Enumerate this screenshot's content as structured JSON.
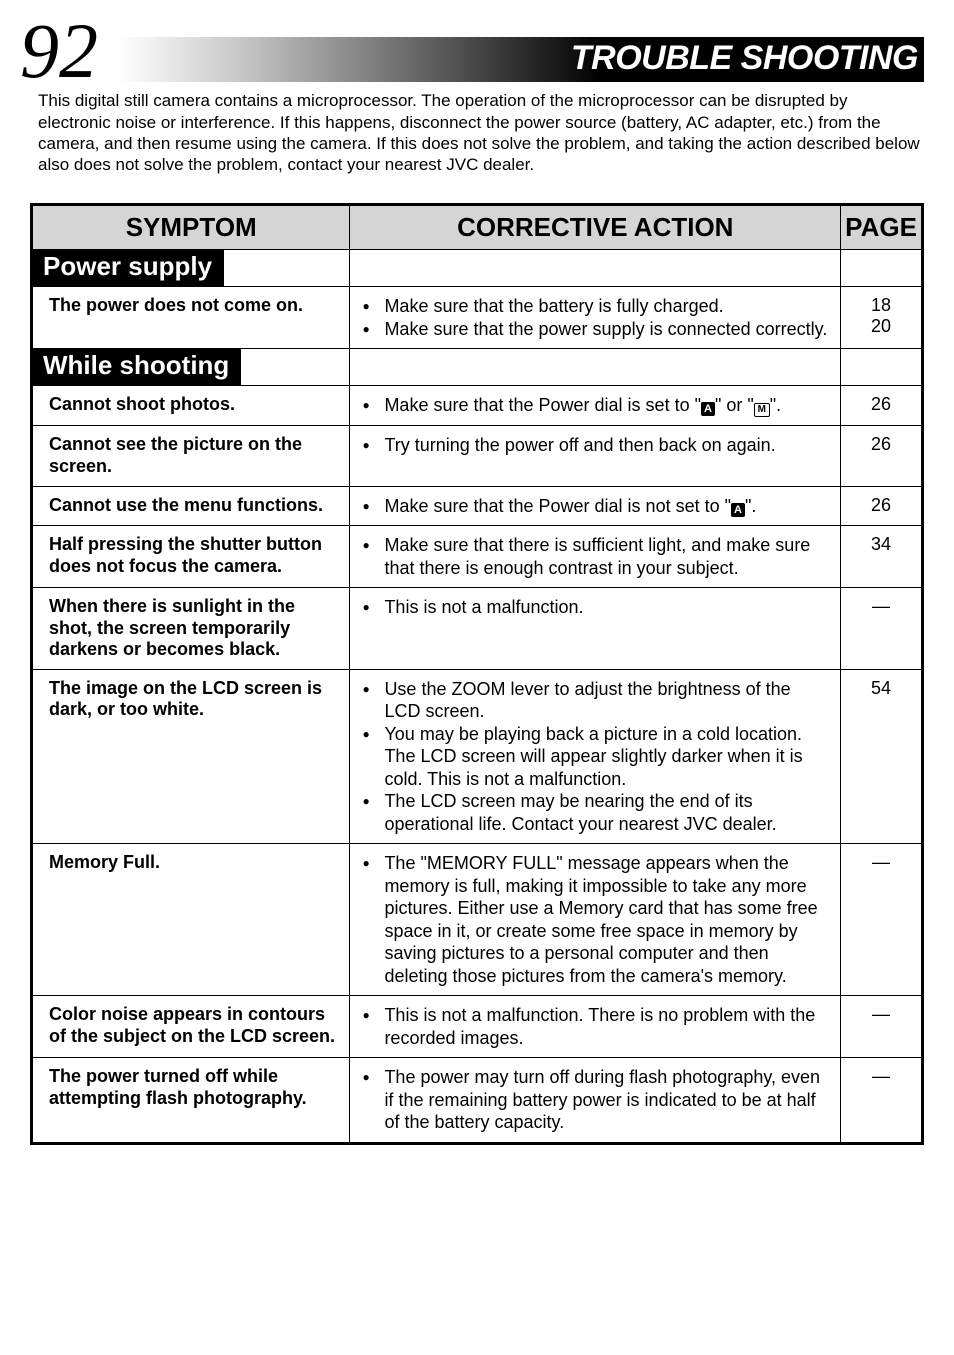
{
  "page_number": "92",
  "section_title": "TROUBLE SHOOTING",
  "intro_text": "This digital still camera contains a microprocessor. The operation of the microprocessor can be disrupted by electronic noise or interference. If this happens, disconnect the power source (battery, AC adapter, etc.) from the camera, and then resume using the camera. If this does not solve the problem, and taking the action described below also does not solve the problem, contact your nearest JVC dealer.",
  "columns": {
    "symptom": "SYMPTOM",
    "action": "CORRECTIVE ACTION",
    "page": "PAGE"
  },
  "sections": [
    {
      "label": "Power supply",
      "rows": [
        {
          "symptom": "The power does not come on.",
          "actions": [
            "Make sure that the battery is fully charged.",
            "Make sure that the power supply is connected correctly."
          ],
          "page": "18\n20"
        }
      ]
    },
    {
      "label": "While shooting",
      "rows": [
        {
          "symptom": "Cannot shoot photos.",
          "actions_html": "Make sure that the Power dial is set to \"<span class='icon-box'>A</span>\" or \"<span class='icon-m'>M</span>\".",
          "page": "26"
        },
        {
          "symptom": "Cannot see the picture on the screen.",
          "actions": [
            "Try turning the power off and then back on again."
          ],
          "page": "26"
        },
        {
          "symptom": "Cannot use the menu functions.",
          "actions_html": "Make sure that the Power dial is not set to \"<span class='icon-box'>A</span>\".",
          "page": "26"
        },
        {
          "symptom": "Half pressing the shutter button does not focus the camera.",
          "actions": [
            "Make sure that there is sufficient light, and make sure that there is enough contrast in your subject."
          ],
          "page": "34"
        },
        {
          "symptom": "When there is sunlight in the shot, the screen temporarily darkens or becomes black.",
          "actions": [
            "This is not a malfunction."
          ],
          "page": "—"
        },
        {
          "symptom": "The image on the LCD screen is dark, or too white.",
          "actions": [
            "Use the ZOOM lever to adjust the brightness of the LCD screen.",
            "You may be playing back a picture in a cold location. The LCD screen will appear slightly darker when it is cold. This is not a malfunction.",
            "The LCD screen may be nearing the end of its operational life. Contact your nearest JVC dealer."
          ],
          "page": "54"
        },
        {
          "symptom": "Memory Full.",
          "actions": [
            "The \"MEMORY FULL\" message appears when the memory is full, making it impossible to take any more pictures. Either use a Memory card that has some free space in it, or create some free space in memory by saving pictures to a personal computer and then deleting those pictures from the camera's memory."
          ],
          "page": "—"
        },
        {
          "symptom": "Color noise appears in contours of the subject on the LCD screen.",
          "actions": [
            "This is not a malfunction. There is no problem with the recorded images."
          ],
          "page": "—"
        },
        {
          "symptom": "The power turned off while attempting flash photography.",
          "actions": [
            "The power may turn off during flash photography, even if the remaining battery power is indicated to be at half of the battery capacity."
          ],
          "page": "—"
        }
      ]
    }
  ],
  "style": {
    "page_bg": "#ffffff",
    "header_gradient_start": "#ffffff",
    "header_gradient_end": "#000000",
    "table_border": "#000000",
    "th_bg": "#d5d5d5",
    "section_bg": "#000000",
    "section_fg": "#ffffff",
    "text_color": "#000000",
    "intro_fontsize": 17,
    "th_fontsize": 26,
    "symptom_fontsize": 18,
    "action_fontsize": 18,
    "page_fontsize": 18,
    "pagenum_fontsize": 78,
    "title_fontsize": 34
  }
}
